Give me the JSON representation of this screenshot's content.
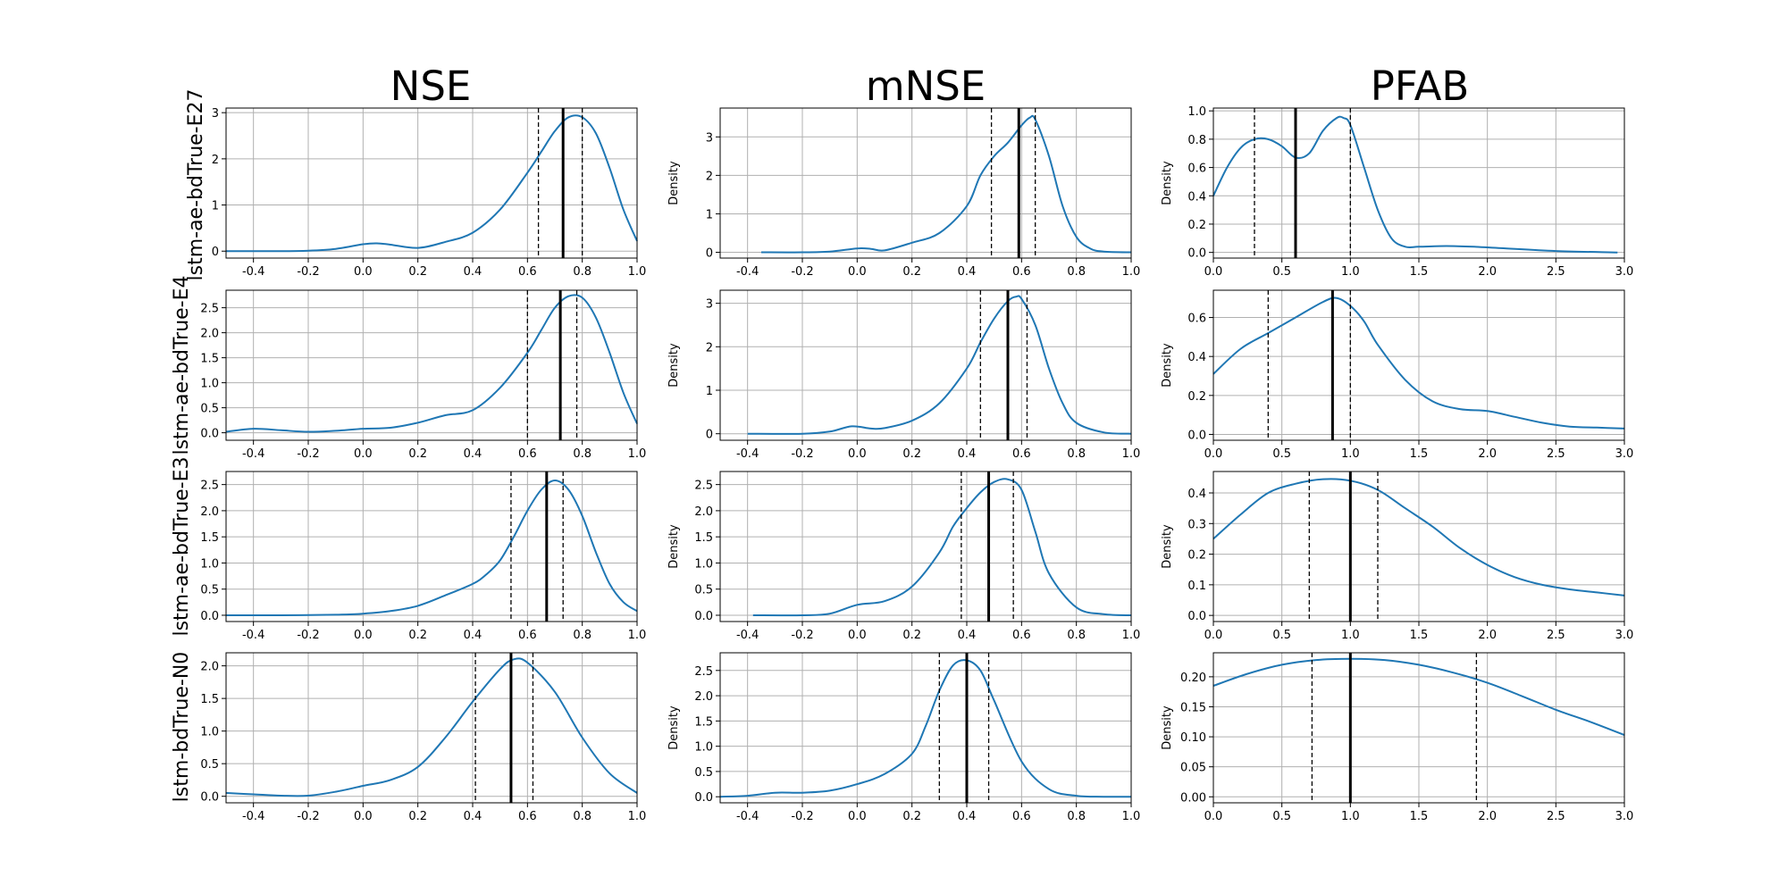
{
  "figure": {
    "column_titles": [
      "NSE",
      "mNSE",
      "PFAB"
    ],
    "row_titles": [
      "lstm-ae-bdTrue-E27",
      "lstm-ae-bdTrue-E4",
      "lstm-ae-bdTrue-E3",
      "lstm-bdTrue-N0"
    ],
    "colors": {
      "curve": "#1f77b4",
      "median_line": "#000000",
      "quartile_line": "#000000",
      "grid": "#b0b0b0"
    }
  },
  "chart_data": [
    {
      "type": "line",
      "id": "p00",
      "row": 0,
      "col": 0,
      "ylabel": "",
      "xlim": [
        -0.5,
        1.0
      ],
      "ylim": [
        -0.15,
        3.1
      ],
      "xticks": [
        "-0.4",
        "-0.2",
        "0.0",
        "0.2",
        "0.4",
        "0.6",
        "0.8",
        "1.0"
      ],
      "yticks": [
        "0",
        "1",
        "2",
        "3"
      ],
      "x": [
        -0.5,
        -0.3,
        -0.2,
        -0.1,
        0.0,
        0.05,
        0.1,
        0.2,
        0.3,
        0.4,
        0.5,
        0.6,
        0.65,
        0.7,
        0.75,
        0.8,
        0.85,
        0.9,
        0.95,
        1.0
      ],
      "y": [
        0,
        0,
        0.01,
        0.05,
        0.15,
        0.17,
        0.14,
        0.07,
        0.2,
        0.4,
        0.9,
        1.7,
        2.15,
        2.6,
        2.9,
        2.9,
        2.55,
        1.8,
        0.9,
        0.22
      ],
      "median": 0.73,
      "quartiles": [
        0.64,
        0.8
      ],
      "grid": true
    },
    {
      "type": "line",
      "id": "p01",
      "row": 0,
      "col": 1,
      "ylabel": "Density",
      "xlim": [
        -0.5,
        1.0
      ],
      "ylim": [
        -0.15,
        3.75
      ],
      "xticks": [
        "-0.4",
        "-0.2",
        "0.0",
        "0.2",
        "0.4",
        "0.6",
        "0.8",
        "1.0"
      ],
      "yticks": [
        "0",
        "1",
        "2",
        "3"
      ],
      "x": [
        -0.35,
        -0.2,
        -0.1,
        0.0,
        0.05,
        0.1,
        0.2,
        0.3,
        0.4,
        0.45,
        0.5,
        0.55,
        0.6,
        0.63,
        0.65,
        0.7,
        0.75,
        0.8,
        0.85,
        0.9,
        1.0
      ],
      "y": [
        0,
        0,
        0.02,
        0.1,
        0.09,
        0.05,
        0.25,
        0.5,
        1.2,
        2.0,
        2.5,
        2.85,
        3.3,
        3.5,
        3.45,
        2.5,
        1.2,
        0.4,
        0.1,
        0.02,
        0
      ],
      "median": 0.59,
      "quartiles": [
        0.49,
        0.65
      ],
      "grid": true
    },
    {
      "type": "line",
      "id": "p02",
      "row": 0,
      "col": 2,
      "ylabel": "Density",
      "xlim": [
        0.0,
        3.0
      ],
      "ylim": [
        -0.04,
        1.02
      ],
      "xticks": [
        "0.0",
        "0.5",
        "1.0",
        "1.5",
        "2.0",
        "2.5",
        "3.0"
      ],
      "yticks": [
        "0.0",
        "0.2",
        "0.4",
        "0.6",
        "0.8",
        "1.0"
      ],
      "x": [
        0.0,
        0.1,
        0.2,
        0.3,
        0.4,
        0.5,
        0.6,
        0.7,
        0.8,
        0.9,
        0.95,
        1.0,
        1.1,
        1.2,
        1.3,
        1.4,
        1.5,
        1.7,
        1.9,
        2.1,
        2.5,
        2.95
      ],
      "y": [
        0.4,
        0.6,
        0.74,
        0.8,
        0.8,
        0.75,
        0.67,
        0.7,
        0.86,
        0.95,
        0.95,
        0.9,
        0.6,
        0.3,
        0.1,
        0.04,
        0.04,
        0.045,
        0.04,
        0.03,
        0.01,
        0.0
      ],
      "median": 0.6,
      "quartiles": [
        0.3,
        1.0
      ],
      "grid": true
    },
    {
      "type": "line",
      "id": "p10",
      "row": 1,
      "col": 0,
      "ylabel": "",
      "xlim": [
        -0.5,
        1.0
      ],
      "ylim": [
        -0.15,
        2.85
      ],
      "xticks": [
        "-0.4",
        "-0.2",
        "0.0",
        "0.2",
        "0.4",
        "0.6",
        "0.8",
        "1.0"
      ],
      "yticks": [
        "0.0",
        "0.5",
        "1.0",
        "1.5",
        "2.0",
        "2.5"
      ],
      "x": [
        -0.5,
        -0.4,
        -0.3,
        -0.2,
        -0.1,
        0.0,
        0.1,
        0.2,
        0.3,
        0.4,
        0.5,
        0.6,
        0.65,
        0.7,
        0.75,
        0.8,
        0.85,
        0.9,
        0.95,
        1.0
      ],
      "y": [
        0.02,
        0.08,
        0.05,
        0.02,
        0.04,
        0.08,
        0.1,
        0.2,
        0.35,
        0.45,
        0.9,
        1.6,
        2.05,
        2.5,
        2.73,
        2.7,
        2.3,
        1.6,
        0.8,
        0.18
      ],
      "median": 0.72,
      "quartiles": [
        0.6,
        0.78
      ],
      "grid": true
    },
    {
      "type": "line",
      "id": "p11",
      "row": 1,
      "col": 1,
      "ylabel": "Density",
      "xlim": [
        -0.5,
        1.0
      ],
      "ylim": [
        -0.15,
        3.3
      ],
      "xticks": [
        "-0.4",
        "-0.2",
        "0.0",
        "0.2",
        "0.4",
        "0.6",
        "0.8",
        "1.0"
      ],
      "yticks": [
        "0",
        "1",
        "2",
        "3"
      ],
      "x": [
        -0.4,
        -0.2,
        -0.1,
        -0.02,
        0.05,
        0.1,
        0.2,
        0.3,
        0.4,
        0.45,
        0.5,
        0.55,
        0.58,
        0.6,
        0.65,
        0.7,
        0.75,
        0.8,
        0.9,
        1.0
      ],
      "y": [
        0,
        0,
        0.05,
        0.17,
        0.12,
        0.13,
        0.3,
        0.7,
        1.5,
        2.1,
        2.65,
        3.05,
        3.15,
        3.1,
        2.5,
        1.5,
        0.7,
        0.25,
        0.03,
        0
      ],
      "median": 0.55,
      "quartiles": [
        0.45,
        0.62
      ],
      "grid": true
    },
    {
      "type": "line",
      "id": "p12",
      "row": 1,
      "col": 2,
      "ylabel": "Density",
      "xlim": [
        0.0,
        3.0
      ],
      "ylim": [
        -0.03,
        0.74
      ],
      "xticks": [
        "0.0",
        "0.5",
        "1.0",
        "1.5",
        "2.0",
        "2.5",
        "3.0"
      ],
      "yticks": [
        "0.0",
        "0.2",
        "0.4",
        "0.6"
      ],
      "x": [
        0.0,
        0.2,
        0.4,
        0.6,
        0.8,
        0.9,
        1.0,
        1.1,
        1.2,
        1.4,
        1.6,
        1.8,
        2.0,
        2.2,
        2.4,
        2.6,
        2.8,
        3.0
      ],
      "y": [
        0.31,
        0.44,
        0.52,
        0.6,
        0.68,
        0.7,
        0.66,
        0.58,
        0.46,
        0.28,
        0.17,
        0.13,
        0.12,
        0.09,
        0.06,
        0.04,
        0.035,
        0.03
      ],
      "median": 0.87,
      "quartiles": [
        0.4,
        1.0
      ],
      "grid": true
    },
    {
      "type": "line",
      "id": "p20",
      "row": 2,
      "col": 0,
      "ylabel": "",
      "xlim": [
        -0.5,
        1.0
      ],
      "ylim": [
        -0.12,
        2.75
      ],
      "xticks": [
        "-0.4",
        "-0.2",
        "0.0",
        "0.2",
        "0.4",
        "0.6",
        "0.8",
        "1.0"
      ],
      "yticks": [
        "0.0",
        "0.5",
        "1.0",
        "1.5",
        "2.0",
        "2.5"
      ],
      "x": [
        -0.5,
        -0.3,
        -0.1,
        0.0,
        0.1,
        0.2,
        0.3,
        0.4,
        0.45,
        0.5,
        0.55,
        0.6,
        0.65,
        0.7,
        0.75,
        0.8,
        0.85,
        0.9,
        0.95,
        1.0
      ],
      "y": [
        0,
        0,
        0.01,
        0.03,
        0.08,
        0.18,
        0.38,
        0.6,
        0.78,
        1.05,
        1.5,
        2.0,
        2.4,
        2.58,
        2.4,
        1.9,
        1.2,
        0.6,
        0.25,
        0.08
      ],
      "median": 0.67,
      "quartiles": [
        0.54,
        0.73
      ],
      "grid": true
    },
    {
      "type": "line",
      "id": "p21",
      "row": 2,
      "col": 1,
      "ylabel": "Density",
      "xlim": [
        -0.5,
        1.0
      ],
      "ylim": [
        -0.12,
        2.75
      ],
      "xticks": [
        "-0.4",
        "-0.2",
        "0.0",
        "0.2",
        "0.4",
        "0.6",
        "0.8",
        "1.0"
      ],
      "yticks": [
        "0.0",
        "0.5",
        "1.0",
        "1.5",
        "2.0",
        "2.5"
      ],
      "x": [
        -0.38,
        -0.2,
        -0.1,
        0.0,
        0.1,
        0.2,
        0.3,
        0.35,
        0.4,
        0.45,
        0.5,
        0.55,
        0.6,
        0.65,
        0.7,
        0.8,
        0.9,
        1.0
      ],
      "y": [
        0,
        0,
        0.03,
        0.2,
        0.27,
        0.55,
        1.2,
        1.7,
        2.05,
        2.35,
        2.55,
        2.6,
        2.4,
        1.6,
        0.8,
        0.15,
        0.02,
        0
      ],
      "median": 0.48,
      "quartiles": [
        0.38,
        0.57
      ],
      "grid": true
    },
    {
      "type": "line",
      "id": "p22",
      "row": 2,
      "col": 2,
      "ylabel": "Density",
      "xlim": [
        0.0,
        3.0
      ],
      "ylim": [
        -0.02,
        0.47
      ],
      "xticks": [
        "0.0",
        "0.5",
        "1.0",
        "1.5",
        "2.0",
        "2.5",
        "3.0"
      ],
      "yticks": [
        "0.0",
        "0.1",
        "0.2",
        "0.3",
        "0.4"
      ],
      "x": [
        0.0,
        0.2,
        0.4,
        0.6,
        0.8,
        1.0,
        1.2,
        1.4,
        1.6,
        1.8,
        2.0,
        2.2,
        2.4,
        2.6,
        2.8,
        3.0
      ],
      "y": [
        0.25,
        0.33,
        0.4,
        0.43,
        0.445,
        0.44,
        0.41,
        0.35,
        0.29,
        0.22,
        0.165,
        0.125,
        0.1,
        0.085,
        0.075,
        0.065
      ],
      "median": 1.0,
      "quartiles": [
        0.7,
        1.2
      ],
      "grid": true
    },
    {
      "type": "line",
      "id": "p30",
      "row": 3,
      "col": 0,
      "ylabel": "",
      "xlim": [
        -0.5,
        1.0
      ],
      "ylim": [
        -0.1,
        2.2
      ],
      "xticks": [
        "-0.4",
        "-0.2",
        "0.0",
        "0.2",
        "0.4",
        "0.6",
        "0.8",
        "1.0"
      ],
      "yticks": [
        "0.0",
        "0.5",
        "1.0",
        "1.5",
        "2.0"
      ],
      "x": [
        -0.5,
        -0.4,
        -0.3,
        -0.2,
        -0.1,
        0.0,
        0.1,
        0.2,
        0.3,
        0.4,
        0.5,
        0.55,
        0.6,
        0.7,
        0.8,
        0.9,
        1.0
      ],
      "y": [
        0.05,
        0.03,
        0.01,
        0.01,
        0.07,
        0.16,
        0.25,
        0.45,
        0.9,
        1.45,
        1.95,
        2.1,
        2.05,
        1.6,
        0.9,
        0.35,
        0.05
      ],
      "median": 0.54,
      "quartiles": [
        0.41,
        0.62
      ],
      "grid": true
    },
    {
      "type": "line",
      "id": "p31",
      "row": 3,
      "col": 1,
      "ylabel": "Density",
      "xlim": [
        -0.5,
        1.0
      ],
      "ylim": [
        -0.12,
        2.85
      ],
      "xticks": [
        "-0.4",
        "-0.2",
        "0.0",
        "0.2",
        "0.4",
        "0.6",
        "0.8",
        "1.0"
      ],
      "yticks": [
        "0.0",
        "0.5",
        "1.0",
        "1.5",
        "2.0",
        "2.5"
      ],
      "x": [
        -0.5,
        -0.4,
        -0.3,
        -0.2,
        -0.1,
        0.0,
        0.1,
        0.2,
        0.25,
        0.3,
        0.35,
        0.4,
        0.45,
        0.5,
        0.6,
        0.7,
        0.8,
        0.9,
        1.0
      ],
      "y": [
        0,
        0.02,
        0.08,
        0.08,
        0.12,
        0.25,
        0.45,
        0.85,
        1.4,
        2.1,
        2.6,
        2.7,
        2.5,
        1.9,
        0.7,
        0.15,
        0.02,
        0,
        0
      ],
      "median": 0.4,
      "quartiles": [
        0.3,
        0.48
      ],
      "grid": true
    },
    {
      "type": "line",
      "id": "p32",
      "row": 3,
      "col": 2,
      "ylabel": "Density",
      "xlim": [
        0.0,
        3.0
      ],
      "ylim": [
        -0.01,
        0.24
      ],
      "xticks": [
        "0.0",
        "0.5",
        "1.0",
        "1.5",
        "2.0",
        "2.5",
        "3.0"
      ],
      "yticks": [
        "0.00",
        "0.05",
        "0.10",
        "0.15",
        "0.20"
      ],
      "x": [
        0.0,
        0.25,
        0.5,
        0.75,
        1.0,
        1.25,
        1.5,
        1.75,
        2.0,
        2.25,
        2.5,
        2.75,
        3.0
      ],
      "y": [
        0.185,
        0.205,
        0.22,
        0.228,
        0.23,
        0.228,
        0.22,
        0.207,
        0.19,
        0.168,
        0.145,
        0.125,
        0.103
      ],
      "median": 1.0,
      "quartiles": [
        0.72,
        1.92
      ],
      "grid": true
    }
  ]
}
